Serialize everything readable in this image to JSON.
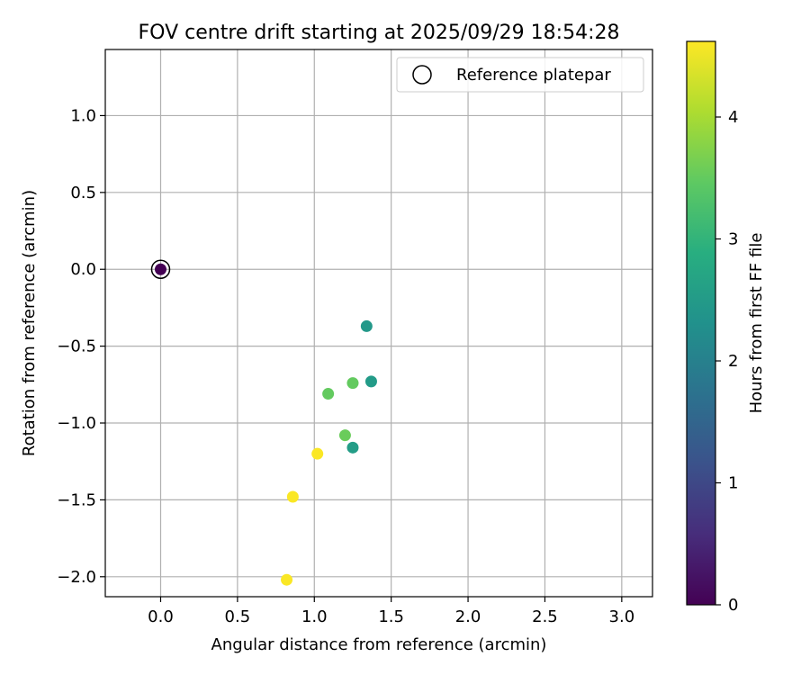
{
  "chart_data": {
    "type": "scatter",
    "title": "FOV centre drift starting at 2025/09/29 18:54:28",
    "xlabel": "Angular distance from reference (arcmin)",
    "ylabel": "Rotation from reference (arcmin)",
    "xlim": [
      -0.36,
      3.2
    ],
    "ylim": [
      -2.13,
      1.43
    ],
    "xticks": [
      0.0,
      0.5,
      1.0,
      1.5,
      2.0,
      2.5,
      3.0
    ],
    "xtick_labels": [
      "0.0",
      "0.5",
      "1.0",
      "1.5",
      "2.0",
      "2.5",
      "3.0"
    ],
    "yticks": [
      1.0,
      0.5,
      0.0,
      -0.5,
      -1.0,
      -1.5,
      -2.0
    ],
    "ytick_labels": [
      "1.0",
      "0.5",
      "0.0",
      "−0.5",
      "−1.0",
      "−1.5",
      "−2.0"
    ],
    "grid": true,
    "legend": {
      "position": "top-right",
      "entries": [
        "Reference platepar"
      ]
    },
    "colorbar": {
      "label": "Hours from first FF file",
      "range": [
        0,
        4.62
      ],
      "ticks": [
        0,
        1,
        2,
        3,
        4
      ],
      "tick_labels": [
        "0",
        "1",
        "2",
        "3",
        "4"
      ],
      "colormap": "viridis"
    },
    "series": [
      {
        "name": "FF files",
        "points": [
          {
            "x": 0.0,
            "y": 0.0,
            "hours": 0.0
          },
          {
            "x": 1.34,
            "y": -0.37,
            "hours": 2.45
          },
          {
            "x": 1.37,
            "y": -0.73,
            "hours": 2.5
          },
          {
            "x": 1.25,
            "y": -1.16,
            "hours": 2.55
          },
          {
            "x": 1.25,
            "y": -0.74,
            "hours": 3.5
          },
          {
            "x": 1.09,
            "y": -0.81,
            "hours": 3.5
          },
          {
            "x": 1.2,
            "y": -1.08,
            "hours": 3.55
          },
          {
            "x": 1.02,
            "y": -1.2,
            "hours": 4.6
          },
          {
            "x": 0.86,
            "y": -1.48,
            "hours": 4.6
          },
          {
            "x": 0.82,
            "y": -2.02,
            "hours": 4.6
          }
        ]
      },
      {
        "name": "Reference platepar",
        "points": [
          {
            "x": 0.0,
            "y": 0.0
          }
        ]
      }
    ]
  }
}
